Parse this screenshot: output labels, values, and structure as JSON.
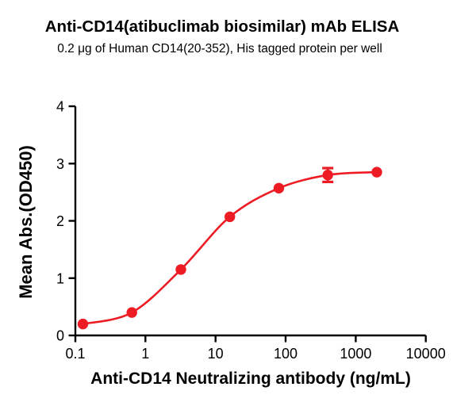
{
  "chart_data": {
    "type": "scatter",
    "title": "Anti-CD14(atibuclimab biosimilar) mAb ELISA",
    "subtitle": "0.2 μg of Human CD14(20-352), His tagged protein per well",
    "xlabel": "Anti-CD14 Neutralizing antibody (ng/mL)",
    "ylabel": "Mean Abs.(OD450)",
    "x_scale": "log10",
    "xlim": [
      0.1,
      10000
    ],
    "ylim": [
      0,
      4
    ],
    "x_ticks": [
      0.1,
      1,
      10,
      100,
      1000,
      10000
    ],
    "x_tick_labels": [
      "0.1",
      "1",
      "10",
      "100",
      "1000",
      "10000"
    ],
    "y_ticks": [
      0,
      1,
      2,
      3,
      4
    ],
    "y_tick_labels": [
      "0",
      "1",
      "2",
      "3",
      "4"
    ],
    "grid": false,
    "legend": "none",
    "curve": "sigmoidal dose-response fit through data points",
    "series": [
      {
        "name": "Anti-CD14 neutralizing antibody",
        "marker": "circle",
        "color": "#ED1C24",
        "x": [
          0.128,
          0.64,
          3.2,
          16,
          80,
          400,
          2000
        ],
        "y": [
          0.2,
          0.4,
          1.15,
          2.07,
          2.57,
          2.8,
          2.85
        ],
        "y_error": [
          0,
          0,
          0,
          0,
          0,
          0.12,
          0
        ]
      }
    ]
  },
  "colors": {
    "series": "#ED1C24",
    "axis": "#000000",
    "text": "#000000",
    "background": "#FFFFFF"
  }
}
